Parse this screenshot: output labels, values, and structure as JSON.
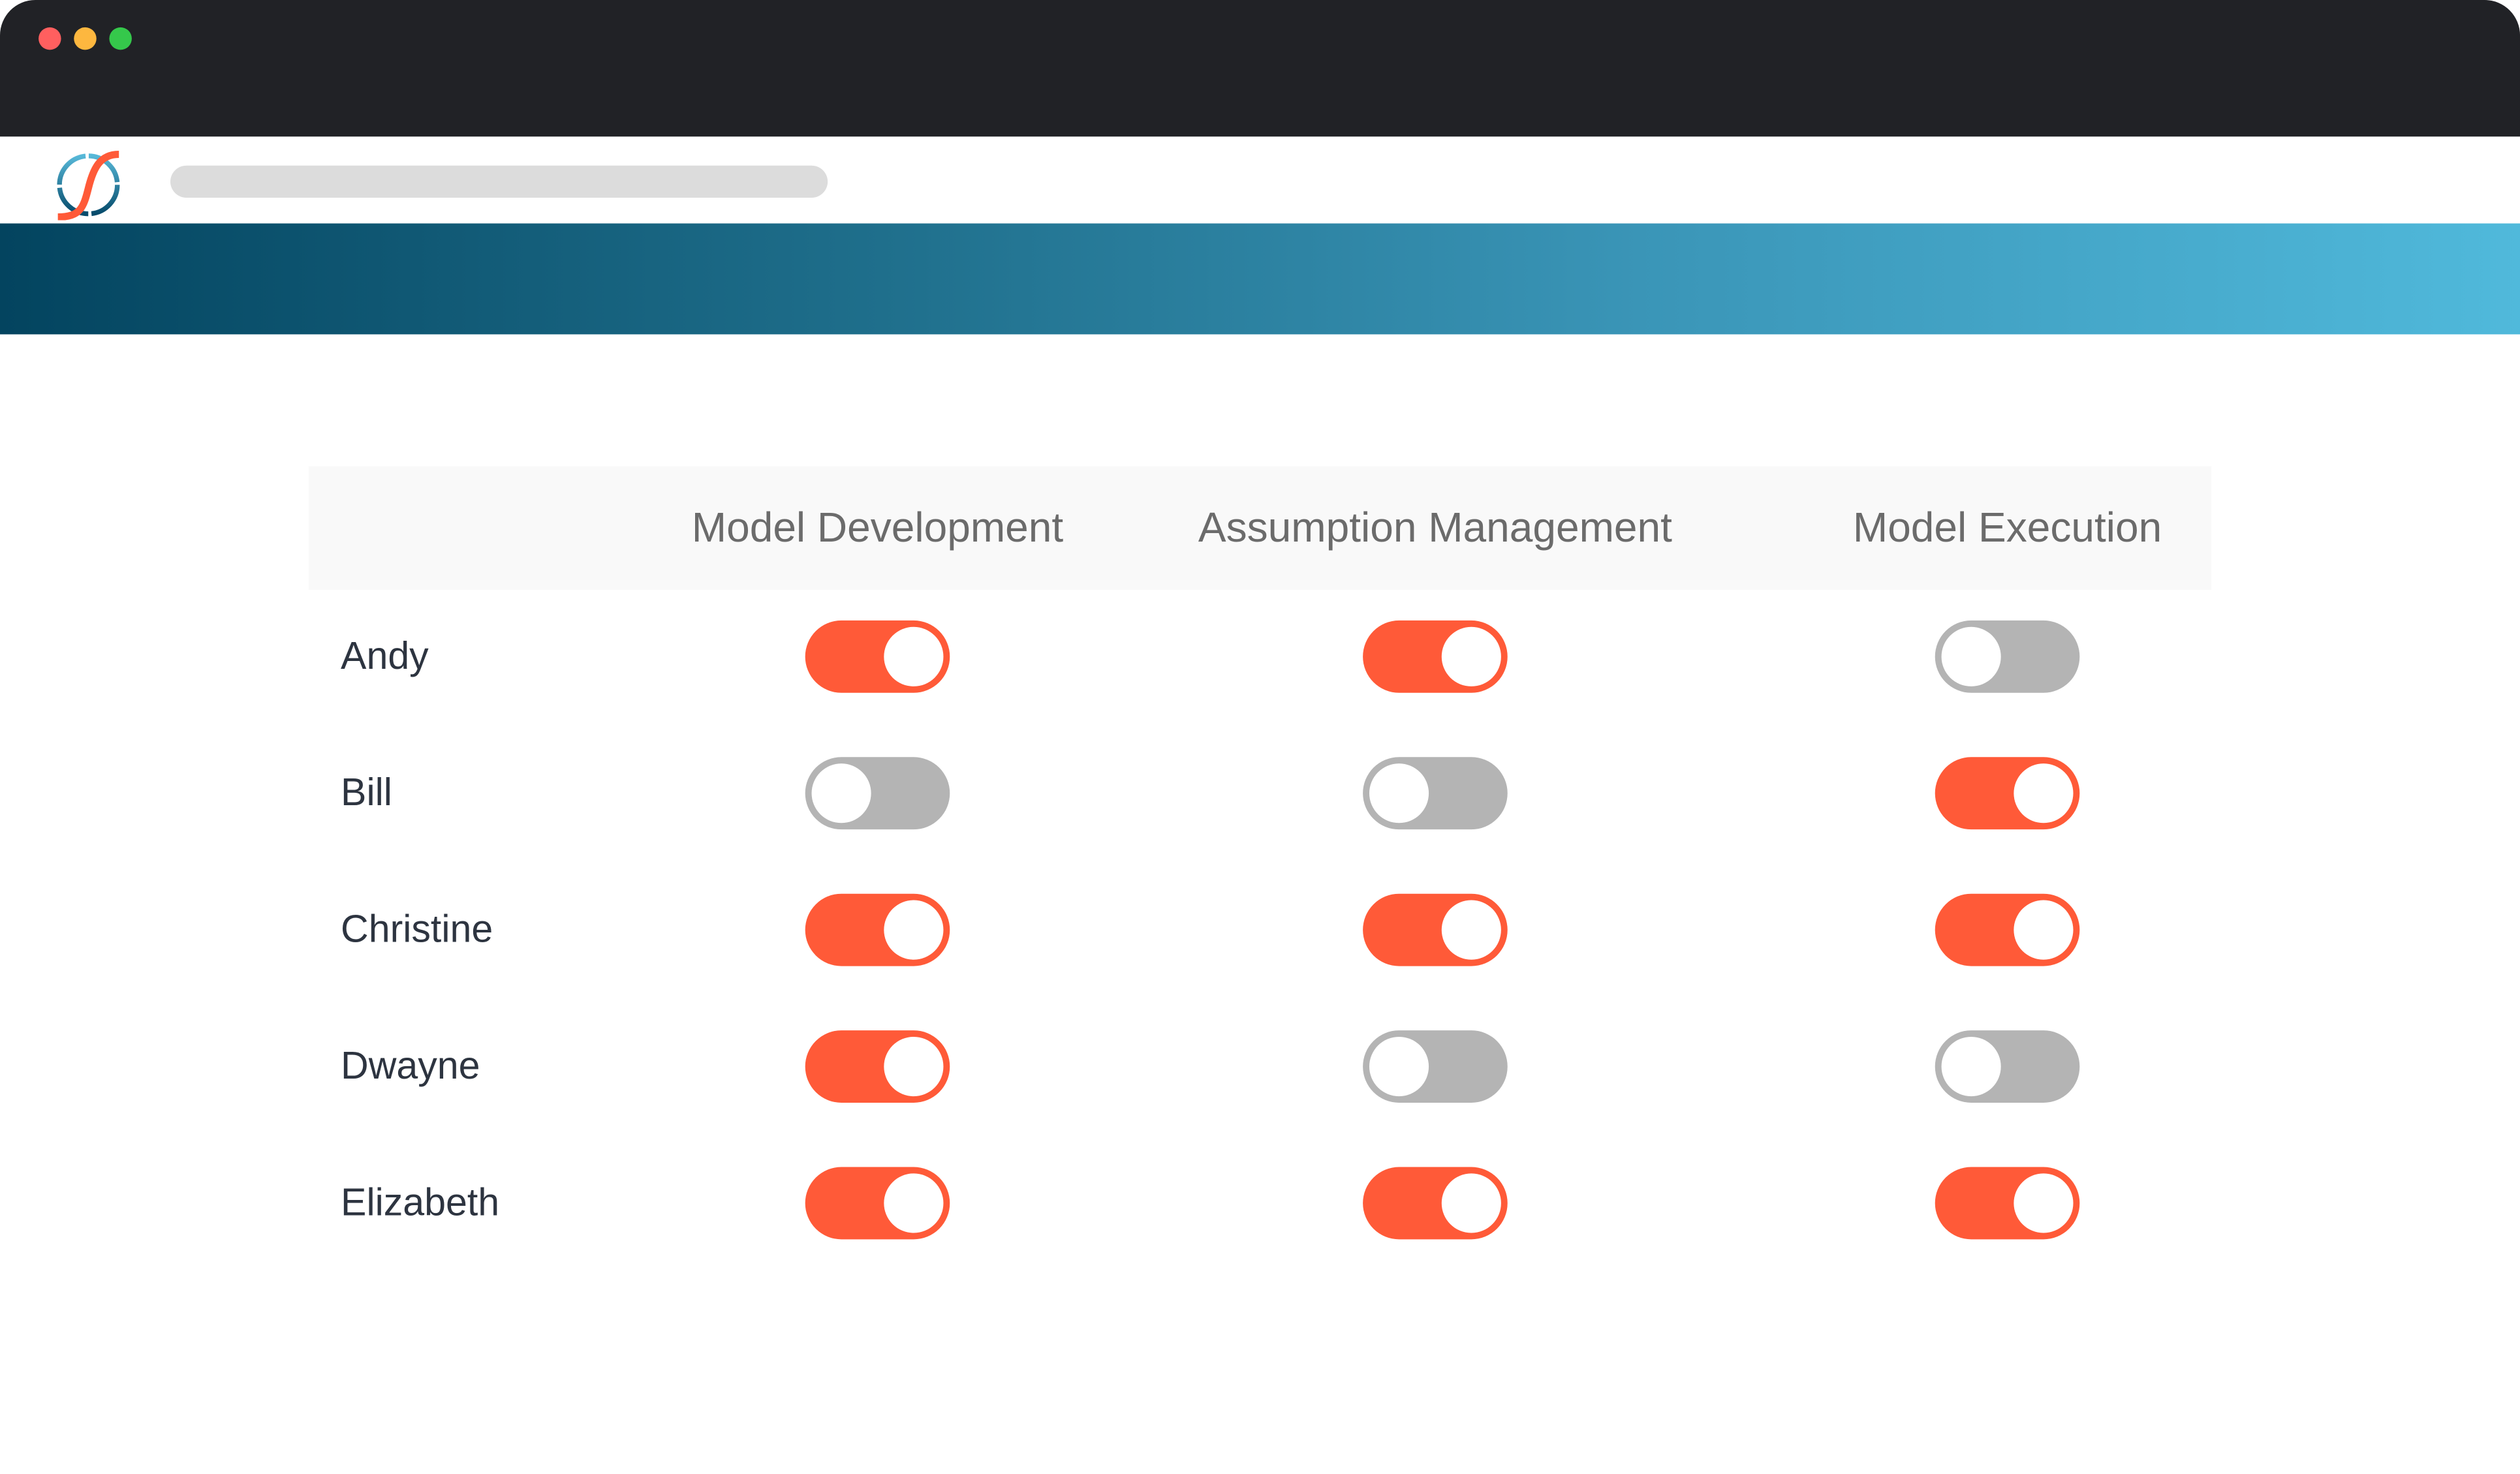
{
  "window": {
    "controls": {
      "close_color": "#ff5f5f",
      "minimize_color": "#fdb73f",
      "maximize_color": "#35c84b"
    }
  },
  "brand": {
    "accent": "#ff5a38",
    "off_color": "#b4b4b4",
    "banner_gradient": [
      "#03445f",
      "#50b9db"
    ]
  },
  "table": {
    "columns": [
      "Model Development",
      "Assumption Management",
      "Model Execution"
    ],
    "rows": [
      {
        "name": "Andy",
        "permissions": [
          true,
          true,
          false
        ]
      },
      {
        "name": "Bill",
        "permissions": [
          false,
          false,
          true
        ]
      },
      {
        "name": "Christine",
        "permissions": [
          true,
          true,
          true
        ]
      },
      {
        "name": "Dwayne",
        "permissions": [
          true,
          false,
          false
        ]
      },
      {
        "name": "Elizabeth",
        "permissions": [
          true,
          true,
          true
        ]
      }
    ]
  }
}
